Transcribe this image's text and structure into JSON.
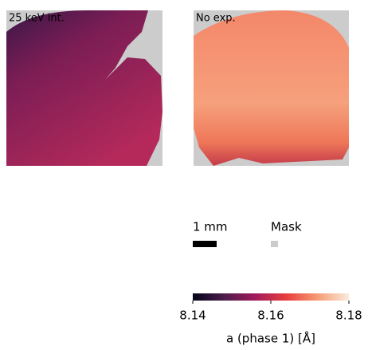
{
  "chart_data": {
    "type": "image",
    "panels": [
      {
        "title": "25 keV int."
      },
      {
        "title": "No exp."
      }
    ],
    "scale_bar": {
      "label": "1 mm",
      "color": "#000000"
    },
    "mask": {
      "label": "Mask",
      "color": "#cccccc"
    },
    "colorbar": {
      "label": "a (phase 1) [Å]",
      "clim": [
        8.14,
        8.18
      ],
      "ticks": [
        8.14,
        8.16,
        8.18
      ],
      "colormap": [
        "#03051a",
        "#4c1d4b",
        "#a11a5b",
        "#e83f3f",
        "#f69c73",
        "#faebdd"
      ]
    }
  }
}
